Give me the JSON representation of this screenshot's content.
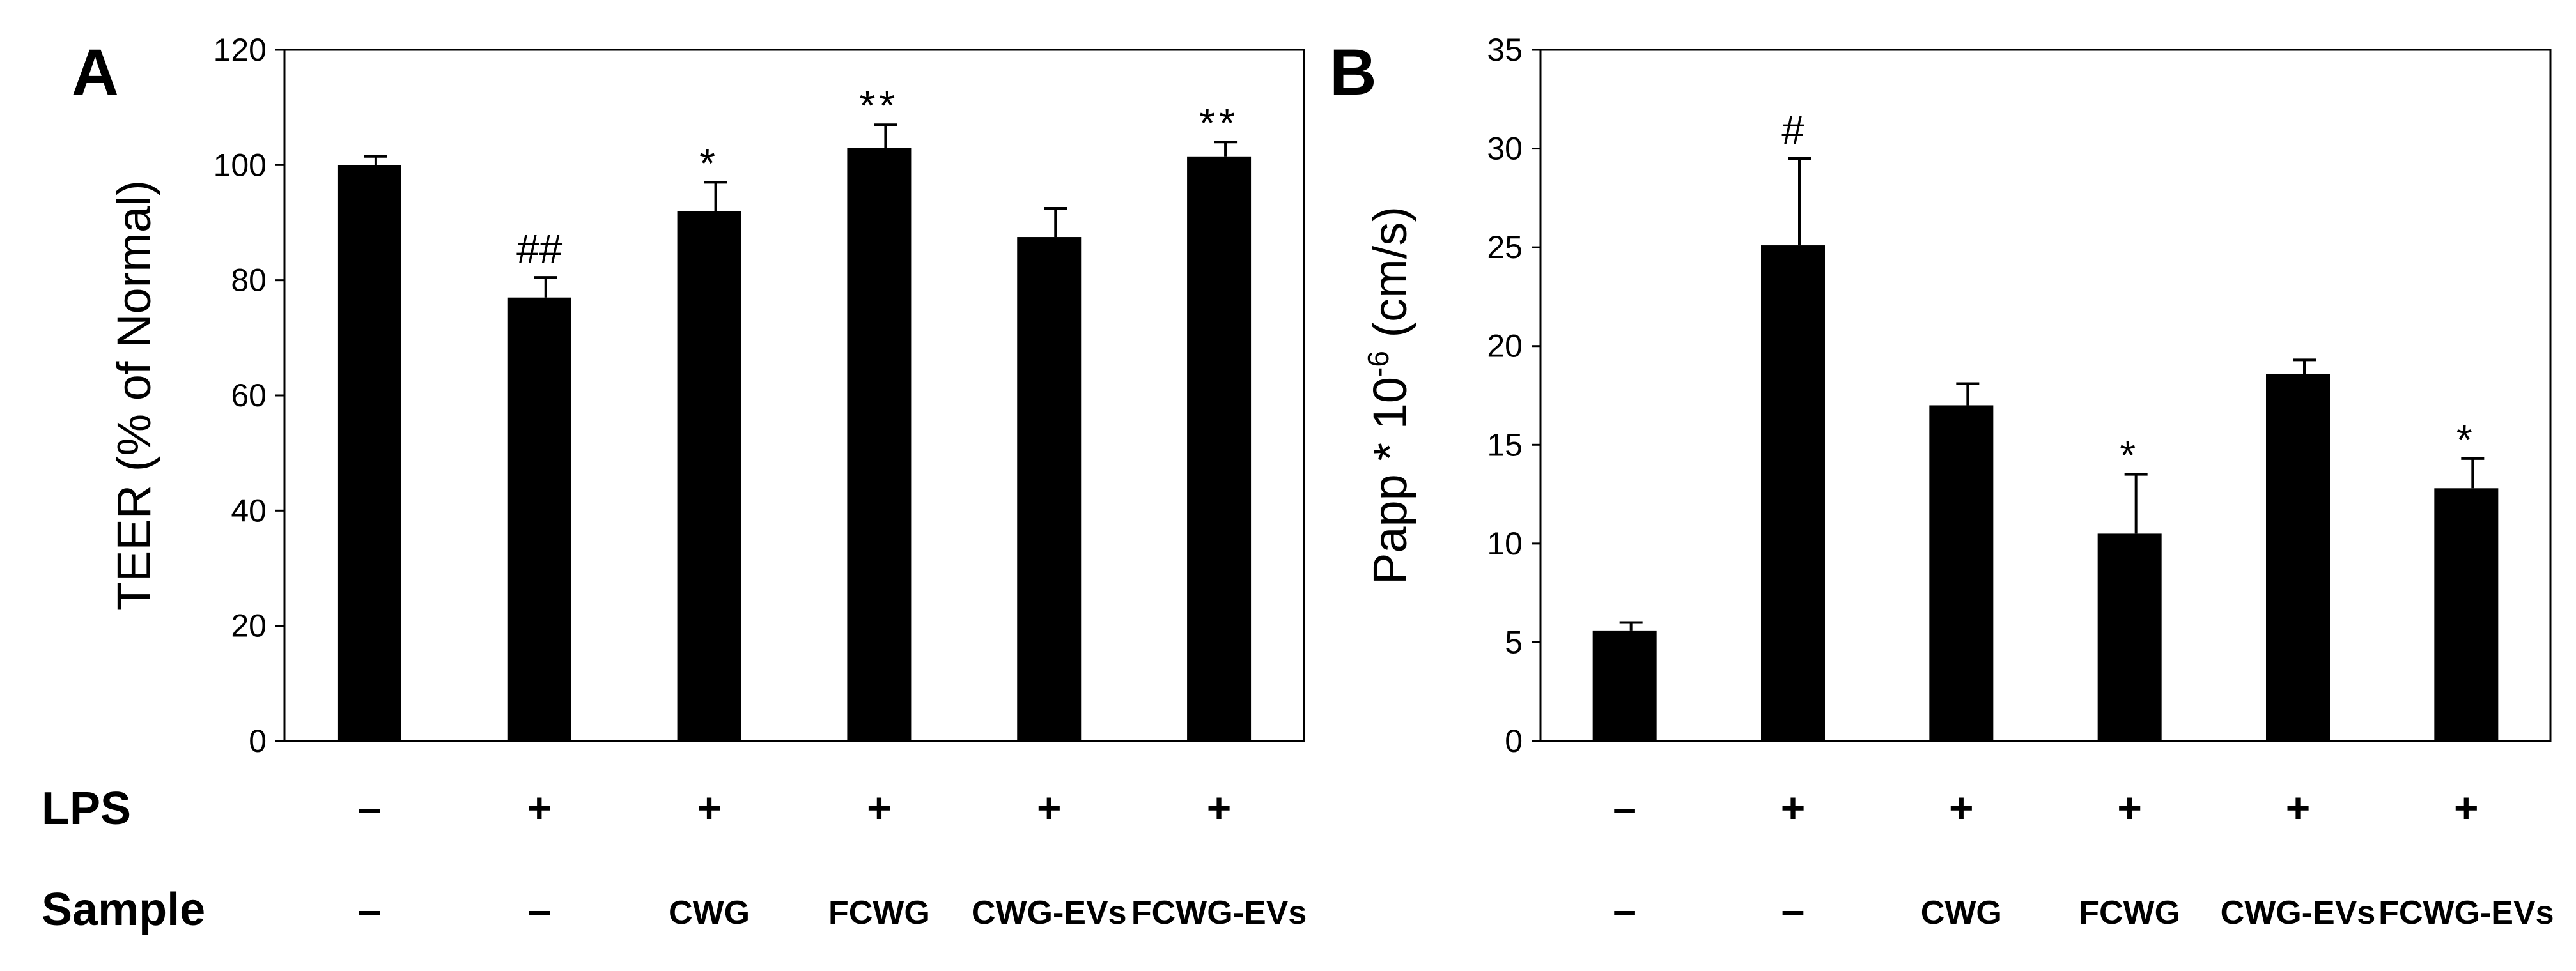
{
  "chart_data": [
    {
      "panel": "A",
      "type": "bar",
      "ylabel": "TEER (% of Normal)",
      "ylim": [
        0,
        120
      ],
      "yticks": [
        0,
        20,
        40,
        60,
        80,
        100,
        120
      ],
      "values": [
        100,
        77,
        92,
        103,
        87.5,
        101.5
      ],
      "errors": [
        1.5,
        3.5,
        5,
        4,
        5,
        2.5
      ],
      "annotations": [
        "",
        "##",
        "*",
        "**",
        "",
        "**"
      ],
      "lps": [
        "–",
        "+",
        "+",
        "+",
        "+",
        "+"
      ],
      "sample": [
        "–",
        "–",
        "CWG",
        "FCWG",
        "CWG-EVs",
        "FCWG-EVs"
      ]
    },
    {
      "panel": "B",
      "type": "bar",
      "ylabel_main": "Papp * 10",
      "ylabel_sup": "-6",
      "ylabel_unit": " (cm/s)",
      "ylim": [
        0,
        35
      ],
      "yticks": [
        0,
        5,
        10,
        15,
        20,
        25,
        30,
        35
      ],
      "values": [
        5.6,
        25.1,
        17,
        10.5,
        18.6,
        12.8
      ],
      "errors": [
        0.4,
        4.4,
        1.1,
        3,
        0.7,
        1.5
      ],
      "annotations": [
        "",
        "#",
        "",
        "*",
        "",
        "*"
      ],
      "lps": [
        "–",
        "+",
        "+",
        "+",
        "+",
        "+"
      ],
      "sample": [
        "–",
        "–",
        "CWG",
        "FCWG",
        "CWG-EVs",
        "FCWG-EVs"
      ]
    }
  ],
  "row_labels": {
    "lps": "LPS",
    "sample": "Sample"
  },
  "colors": {
    "bar": "#000000",
    "axis": "#000000",
    "background": "#ffffff"
  }
}
